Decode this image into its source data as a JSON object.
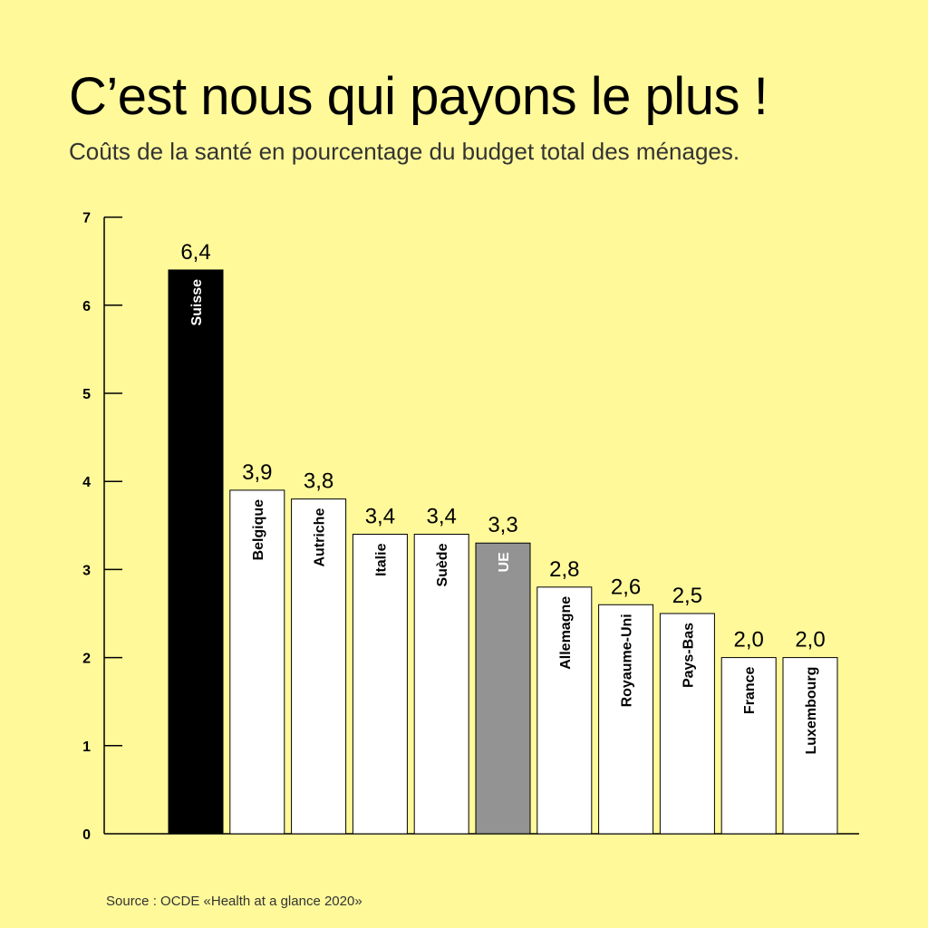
{
  "chart_data": {
    "type": "bar",
    "title": "C’est nous qui payons le plus !",
    "subtitle": "Coûts de la santé en pourcentage du budget total des ménages.",
    "categories": [
      "Suisse",
      "Belgique",
      "Autriche",
      "Italie",
      "Suède",
      "UE",
      "Allemagne",
      "Royaume-Uni",
      "Pays-Bas",
      "France",
      "Luxembourg"
    ],
    "values": [
      6.4,
      3.9,
      3.8,
      3.4,
      3.4,
      3.3,
      2.8,
      2.6,
      2.5,
      2.0,
      2.0
    ],
    "value_labels": [
      "6,4",
      "3,9",
      "3,8",
      "3,4",
      "3,4",
      "3,3",
      "2,8",
      "2,6",
      "2,5",
      "2,0",
      "2,0"
    ],
    "bar_colors": [
      "#000000",
      "#ffffff",
      "#ffffff",
      "#ffffff",
      "#ffffff",
      "#939393",
      "#ffffff",
      "#ffffff",
      "#ffffff",
      "#ffffff",
      "#ffffff"
    ],
    "bar_label_colors": [
      "#ffffff",
      "#000000",
      "#000000",
      "#000000",
      "#000000",
      "#ffffff",
      "#000000",
      "#000000",
      "#000000",
      "#000000",
      "#000000"
    ],
    "ylim": [
      0,
      7
    ],
    "yticks": [
      0,
      1,
      2,
      3,
      4,
      5,
      6,
      7
    ],
    "xlabel": "",
    "ylabel": "",
    "grid": false,
    "legend": "none",
    "background": "#fff99a"
  },
  "source": "Source : OCDE «Health at a glance 2020»"
}
